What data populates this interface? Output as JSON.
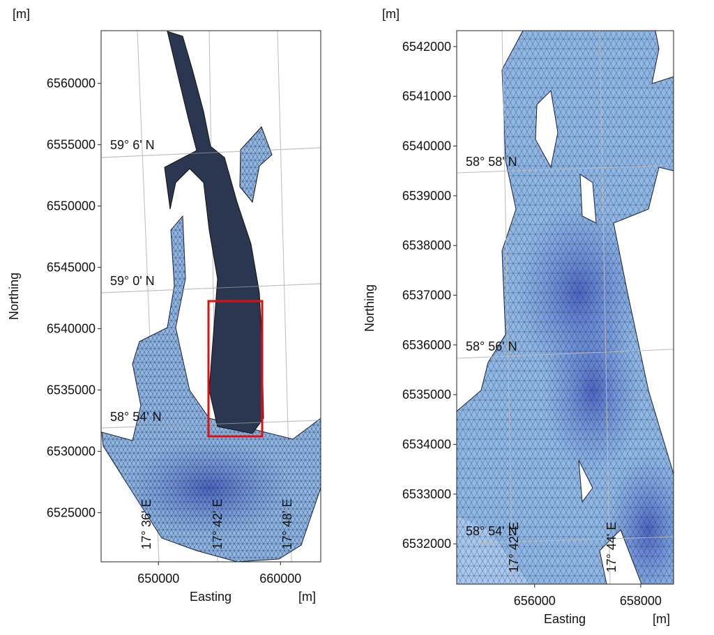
{
  "panels": [
    {
      "y_unit": "[m]",
      "x_unit": "[m]",
      "xlabel": "Easting",
      "ylabel": "Northing",
      "xlim": [
        645300,
        663300
      ],
      "ylim": [
        6521000,
        6564300
      ],
      "xticks": [
        650000,
        660000
      ],
      "yticks": [
        6525000,
        6530000,
        6535000,
        6540000,
        6545000,
        6550000,
        6555000,
        6560000
      ],
      "latitude_labels": [
        "59° 6' N",
        "59° 0' N",
        "58° 54' N"
      ],
      "longitude_labels": [
        "17° 36' E",
        "17° 42' E",
        "17° 48' E"
      ]
    },
    {
      "y_unit": "[m]",
      "x_unit": "[m]",
      "xlabel": "Easting",
      "ylabel": "Northing",
      "xlim": [
        654530,
        658620
      ],
      "ylim": [
        6531190,
        6542320
      ],
      "xticks": [
        656000,
        658000
      ],
      "yticks": [
        6532000,
        6533000,
        6534000,
        6535000,
        6536000,
        6537000,
        6538000,
        6539000,
        6540000,
        6541000,
        6542000
      ],
      "latitude_labels": [
        "58° 58' N",
        "58° 56' N",
        "58° 54' N"
      ],
      "longitude_labels": [
        "17° 42' E",
        "17° 44' E"
      ]
    }
  ]
}
